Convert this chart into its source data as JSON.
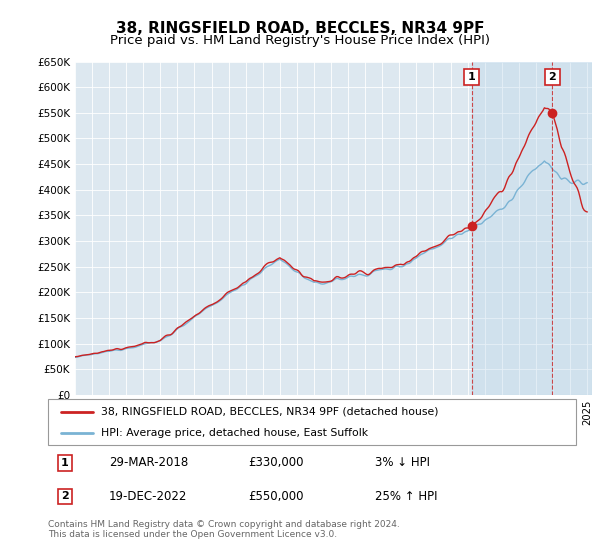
{
  "title": "38, RINGSFIELD ROAD, BECCLES, NR34 9PF",
  "subtitle": "Price paid vs. HM Land Registry's House Price Index (HPI)",
  "ylim": [
    0,
    650000
  ],
  "yticks": [
    0,
    50000,
    100000,
    150000,
    200000,
    250000,
    300000,
    350000,
    400000,
    450000,
    500000,
    550000,
    600000,
    650000
  ],
  "ytick_labels": [
    "£0",
    "£50K",
    "£100K",
    "£150K",
    "£200K",
    "£250K",
    "£300K",
    "£350K",
    "£400K",
    "£450K",
    "£500K",
    "£550K",
    "£600K",
    "£650K"
  ],
  "xlim_start": 1995.0,
  "xlim_end": 2025.3,
  "hpi_color": "#7ab3d4",
  "price_color": "#cc2222",
  "background_color": "#dde8f0",
  "shade_color": "#ccdff0",
  "transaction1_date": 2018.24,
  "transaction1_price": 330000,
  "transaction1_label": "1",
  "transaction2_date": 2022.97,
  "transaction2_price": 550000,
  "transaction2_label": "2",
  "legend_line1": "38, RINGSFIELD ROAD, BECCLES, NR34 9PF (detached house)",
  "legend_line2": "HPI: Average price, detached house, East Suffolk",
  "table_row1": [
    "1",
    "29-MAR-2018",
    "£330,000",
    "3% ↓ HPI"
  ],
  "table_row2": [
    "2",
    "19-DEC-2022",
    "£550,000",
    "25% ↑ HPI"
  ],
  "footer": "Contains HM Land Registry data © Crown copyright and database right 2024.\nThis data is licensed under the Open Government Licence v3.0.",
  "title_fontsize": 11,
  "subtitle_fontsize": 9.5
}
